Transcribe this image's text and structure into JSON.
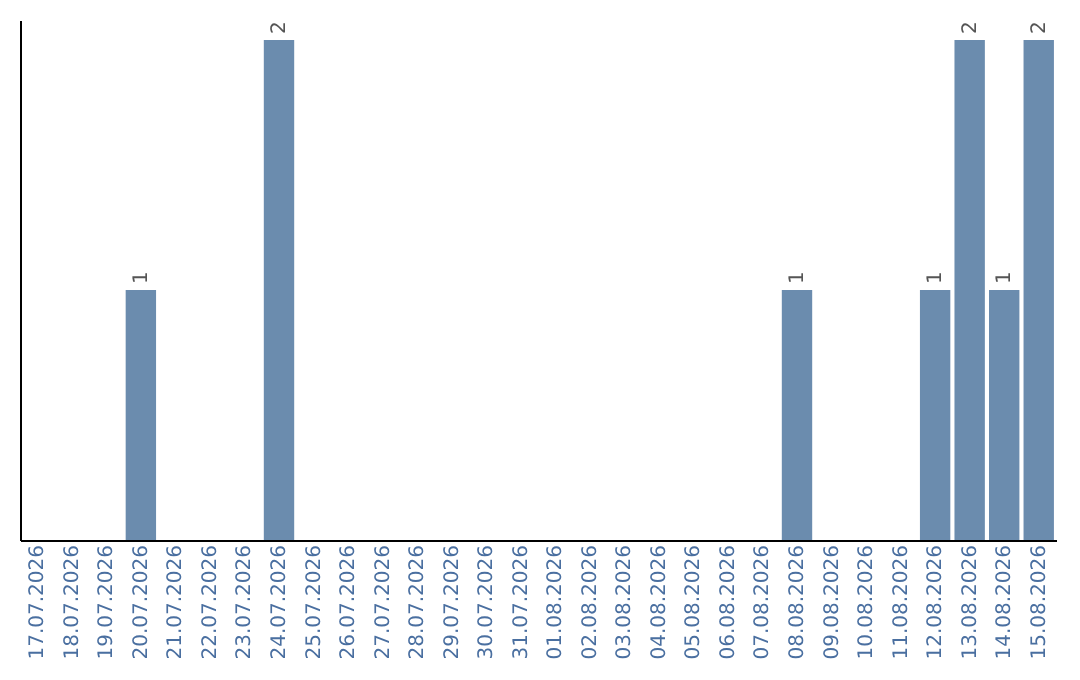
{
  "chart_data": {
    "type": "bar",
    "categories": [
      "17.07.2026",
      "18.07.2026",
      "19.07.2026",
      "20.07.2026",
      "21.07.2026",
      "22.07.2026",
      "23.07.2026",
      "24.07.2026",
      "25.07.2026",
      "26.07.2026",
      "27.07.2026",
      "28.07.2026",
      "29.07.2026",
      "30.07.2026",
      "31.07.2026",
      "01.08.2026",
      "02.08.2026",
      "03.08.2026",
      "04.08.2026",
      "05.08.2026",
      "06.08.2026",
      "07.08.2026",
      "08.08.2026",
      "09.08.2026",
      "10.08.2026",
      "11.08.2026",
      "12.08.2026",
      "13.08.2026",
      "14.08.2026",
      "15.08.2026"
    ],
    "values": [
      0,
      0,
      0,
      1,
      0,
      0,
      0,
      2,
      0,
      0,
      0,
      0,
      0,
      0,
      0,
      0,
      0,
      0,
      0,
      0,
      0,
      0,
      1,
      0,
      0,
      0,
      1,
      2,
      1,
      2
    ],
    "value_labels": [
      null,
      null,
      null,
      "1",
      null,
      null,
      null,
      "2",
      null,
      null,
      null,
      null,
      null,
      null,
      null,
      null,
      null,
      null,
      null,
      null,
      null,
      null,
      "1",
      null,
      null,
      null,
      "1",
      "2",
      "1",
      "2"
    ],
    "color": "#6b8cae",
    "ylim": [
      0,
      2.08
    ],
    "grid": false
  }
}
